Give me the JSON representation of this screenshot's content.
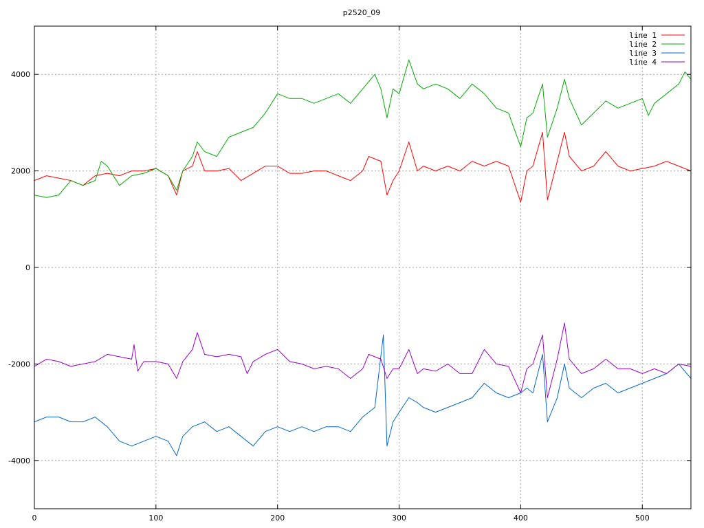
{
  "chart_data": {
    "type": "line",
    "title": "p2520_09",
    "xlabel": "",
    "ylabel": "",
    "xlim": [
      0,
      540
    ],
    "ylim": [
      -5000,
      5000
    ],
    "x_ticks": [
      0,
      100,
      200,
      300,
      400,
      500
    ],
    "y_ticks": [
      -4000,
      -2000,
      0,
      2000,
      4000
    ],
    "x_tick_labels": [
      "0",
      "100",
      "200",
      "300",
      "400",
      "500"
    ],
    "y_tick_labels": [
      "-4000",
      "-2000",
      "0",
      "2000",
      "4000"
    ],
    "grid": true,
    "legend_position": "top-right",
    "series": [
      {
        "name": "line 1",
        "color": "#ff0000",
        "points": [
          [
            0,
            1800
          ],
          [
            10,
            1900
          ],
          [
            20,
            1850
          ],
          [
            30,
            1800
          ],
          [
            40,
            1700
          ],
          [
            50,
            1900
          ],
          [
            60,
            1950
          ],
          [
            70,
            1900
          ],
          [
            80,
            2000
          ],
          [
            90,
            2000
          ],
          [
            100,
            2050
          ],
          [
            110,
            1900
          ],
          [
            117,
            1500
          ],
          [
            122,
            2000
          ],
          [
            130,
            2100
          ],
          [
            134,
            2400
          ],
          [
            140,
            2000
          ],
          [
            150,
            2000
          ],
          [
            160,
            2050
          ],
          [
            170,
            1800
          ],
          [
            180,
            1950
          ],
          [
            190,
            2100
          ],
          [
            200,
            2100
          ],
          [
            210,
            1950
          ],
          [
            220,
            1950
          ],
          [
            230,
            2000
          ],
          [
            240,
            2000
          ],
          [
            250,
            1900
          ],
          [
            260,
            1800
          ],
          [
            270,
            2000
          ],
          [
            275,
            2300
          ],
          [
            285,
            2200
          ],
          [
            290,
            1500
          ],
          [
            295,
            1800
          ],
          [
            300,
            2000
          ],
          [
            308,
            2600
          ],
          [
            315,
            2000
          ],
          [
            320,
            2100
          ],
          [
            330,
            2000
          ],
          [
            340,
            2100
          ],
          [
            350,
            2000
          ],
          [
            360,
            2200
          ],
          [
            370,
            2100
          ],
          [
            380,
            2200
          ],
          [
            390,
            2100
          ],
          [
            400,
            1350
          ],
          [
            405,
            2000
          ],
          [
            410,
            2100
          ],
          [
            418,
            2800
          ],
          [
            422,
            1400
          ],
          [
            430,
            2200
          ],
          [
            436,
            2800
          ],
          [
            440,
            2300
          ],
          [
            450,
            2000
          ],
          [
            460,
            2100
          ],
          [
            470,
            2400
          ],
          [
            480,
            2100
          ],
          [
            490,
            2000
          ],
          [
            500,
            2050
          ],
          [
            510,
            2100
          ],
          [
            520,
            2200
          ],
          [
            530,
            2100
          ],
          [
            540,
            2000
          ]
        ]
      },
      {
        "name": "line 2",
        "color": "#00aa00",
        "points": [
          [
            0,
            1500
          ],
          [
            10,
            1450
          ],
          [
            20,
            1500
          ],
          [
            30,
            1800
          ],
          [
            40,
            1700
          ],
          [
            50,
            1800
          ],
          [
            55,
            2200
          ],
          [
            60,
            2100
          ],
          [
            70,
            1700
          ],
          [
            80,
            1900
          ],
          [
            90,
            1950
          ],
          [
            100,
            2050
          ],
          [
            110,
            1900
          ],
          [
            117,
            1600
          ],
          [
            122,
            2000
          ],
          [
            130,
            2300
          ],
          [
            134,
            2600
          ],
          [
            140,
            2400
          ],
          [
            150,
            2300
          ],
          [
            160,
            2700
          ],
          [
            170,
            2800
          ],
          [
            180,
            2900
          ],
          [
            190,
            3200
          ],
          [
            200,
            3600
          ],
          [
            210,
            3500
          ],
          [
            220,
            3500
          ],
          [
            230,
            3400
          ],
          [
            240,
            3500
          ],
          [
            250,
            3600
          ],
          [
            260,
            3400
          ],
          [
            270,
            3700
          ],
          [
            280,
            4000
          ],
          [
            285,
            3700
          ],
          [
            290,
            3100
          ],
          [
            295,
            3700
          ],
          [
            300,
            3600
          ],
          [
            308,
            4300
          ],
          [
            315,
            3800
          ],
          [
            320,
            3700
          ],
          [
            330,
            3800
          ],
          [
            340,
            3700
          ],
          [
            350,
            3500
          ],
          [
            360,
            3800
          ],
          [
            370,
            3600
          ],
          [
            380,
            3300
          ],
          [
            390,
            3200
          ],
          [
            400,
            2500
          ],
          [
            405,
            3100
          ],
          [
            410,
            3200
          ],
          [
            418,
            3800
          ],
          [
            422,
            2700
          ],
          [
            430,
            3300
          ],
          [
            436,
            3900
          ],
          [
            440,
            3500
          ],
          [
            450,
            2950
          ],
          [
            460,
            3200
          ],
          [
            470,
            3450
          ],
          [
            480,
            3300
          ],
          [
            490,
            3400
          ],
          [
            500,
            3500
          ],
          [
            505,
            3150
          ],
          [
            510,
            3400
          ],
          [
            520,
            3600
          ],
          [
            530,
            3800
          ],
          [
            535,
            4050
          ],
          [
            540,
            3900
          ]
        ]
      },
      {
        "name": "line 3",
        "color": "#0066cc",
        "points": [
          [
            0,
            -3200
          ],
          [
            10,
            -3100
          ],
          [
            20,
            -3100
          ],
          [
            30,
            -3200
          ],
          [
            40,
            -3200
          ],
          [
            50,
            -3100
          ],
          [
            60,
            -3300
          ],
          [
            70,
            -3600
          ],
          [
            80,
            -3700
          ],
          [
            90,
            -3600
          ],
          [
            100,
            -3500
          ],
          [
            110,
            -3600
          ],
          [
            117,
            -3900
          ],
          [
            122,
            -3500
          ],
          [
            130,
            -3300
          ],
          [
            140,
            -3200
          ],
          [
            150,
            -3400
          ],
          [
            160,
            -3300
          ],
          [
            170,
            -3500
          ],
          [
            180,
            -3700
          ],
          [
            190,
            -3400
          ],
          [
            200,
            -3300
          ],
          [
            210,
            -3400
          ],
          [
            220,
            -3300
          ],
          [
            230,
            -3400
          ],
          [
            240,
            -3300
          ],
          [
            250,
            -3300
          ],
          [
            260,
            -3400
          ],
          [
            270,
            -3100
          ],
          [
            280,
            -2900
          ],
          [
            287,
            -1400
          ],
          [
            290,
            -3700
          ],
          [
            295,
            -3200
          ],
          [
            300,
            -3000
          ],
          [
            308,
            -2700
          ],
          [
            315,
            -2800
          ],
          [
            320,
            -2900
          ],
          [
            330,
            -3000
          ],
          [
            340,
            -2900
          ],
          [
            350,
            -2800
          ],
          [
            360,
            -2700
          ],
          [
            370,
            -2400
          ],
          [
            380,
            -2600
          ],
          [
            390,
            -2700
          ],
          [
            400,
            -2600
          ],
          [
            405,
            -2500
          ],
          [
            410,
            -2600
          ],
          [
            418,
            -1800
          ],
          [
            422,
            -3200
          ],
          [
            430,
            -2700
          ],
          [
            436,
            -2000
          ],
          [
            440,
            -2500
          ],
          [
            450,
            -2700
          ],
          [
            460,
            -2500
          ],
          [
            470,
            -2400
          ],
          [
            480,
            -2600
          ],
          [
            490,
            -2500
          ],
          [
            500,
            -2400
          ],
          [
            510,
            -2300
          ],
          [
            520,
            -2200
          ],
          [
            530,
            -2000
          ],
          [
            540,
            -2300
          ]
        ]
      },
      {
        "name": "line 4",
        "color": "#9900cc",
        "points": [
          [
            0,
            -2050
          ],
          [
            10,
            -1900
          ],
          [
            20,
            -1950
          ],
          [
            30,
            -2050
          ],
          [
            40,
            -2000
          ],
          [
            50,
            -1950
          ],
          [
            60,
            -1800
          ],
          [
            70,
            -1850
          ],
          [
            80,
            -1900
          ],
          [
            82,
            -1600
          ],
          [
            85,
            -2150
          ],
          [
            90,
            -1950
          ],
          [
            100,
            -1950
          ],
          [
            110,
            -2000
          ],
          [
            117,
            -2300
          ],
          [
            122,
            -1950
          ],
          [
            130,
            -1700
          ],
          [
            134,
            -1350
          ],
          [
            140,
            -1800
          ],
          [
            150,
            -1850
          ],
          [
            160,
            -1800
          ],
          [
            170,
            -1850
          ],
          [
            175,
            -2200
          ],
          [
            180,
            -1950
          ],
          [
            190,
            -1800
          ],
          [
            200,
            -1700
          ],
          [
            210,
            -1950
          ],
          [
            220,
            -2000
          ],
          [
            230,
            -2100
          ],
          [
            240,
            -2050
          ],
          [
            250,
            -2100
          ],
          [
            260,
            -2300
          ],
          [
            270,
            -2100
          ],
          [
            275,
            -1800
          ],
          [
            285,
            -1900
          ],
          [
            290,
            -2300
          ],
          [
            295,
            -2100
          ],
          [
            300,
            -2100
          ],
          [
            308,
            -1700
          ],
          [
            315,
            -2200
          ],
          [
            320,
            -2100
          ],
          [
            330,
            -2150
          ],
          [
            340,
            -2000
          ],
          [
            350,
            -2200
          ],
          [
            360,
            -2200
          ],
          [
            370,
            -1700
          ],
          [
            380,
            -2000
          ],
          [
            390,
            -2050
          ],
          [
            400,
            -2600
          ],
          [
            405,
            -2100
          ],
          [
            410,
            -2000
          ],
          [
            418,
            -1400
          ],
          [
            422,
            -2700
          ],
          [
            430,
            -1900
          ],
          [
            436,
            -1150
          ],
          [
            440,
            -1900
          ],
          [
            450,
            -2200
          ],
          [
            460,
            -2100
          ],
          [
            470,
            -1900
          ],
          [
            480,
            -2100
          ],
          [
            490,
            -2100
          ],
          [
            500,
            -2200
          ],
          [
            510,
            -2100
          ],
          [
            520,
            -2200
          ],
          [
            530,
            -2000
          ],
          [
            540,
            -2050
          ]
        ]
      }
    ]
  }
}
